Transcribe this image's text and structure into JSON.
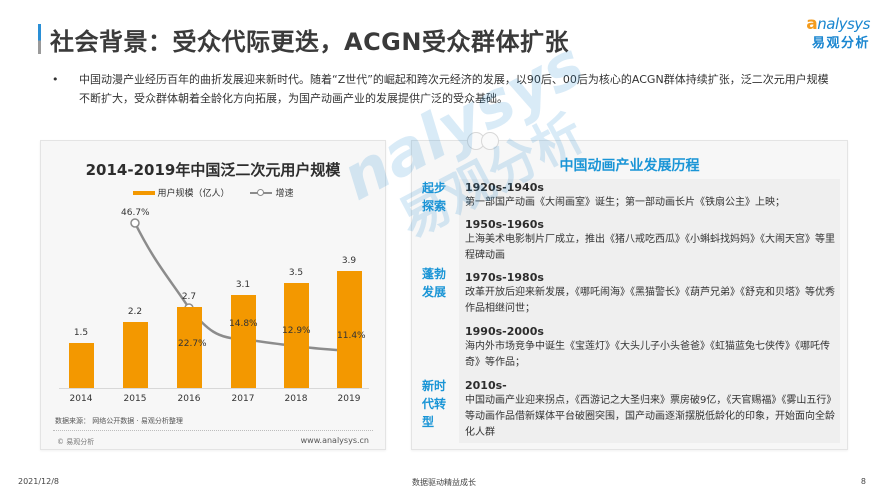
{
  "header": {
    "title": "社会背景：受众代际更迭，ACGN受众群体扩张",
    "logo_en_o": "a",
    "logo_en": "nalysys",
    "logo_cn": "易观分析",
    "accent_color": "#1a86d0"
  },
  "intro": {
    "bullet": "•",
    "text": "中国动漫产业经历百年的曲折发展迎来新时代。随着“Z世代”的崛起和跨次元经济的发展，以90后、00后为核心的ACGN群体持续扩张，泛二次元用户规模不断扩大，受众群体朝着全龄化方向拓展，为国产动画产业的发展提供广泛的受众基础。"
  },
  "chart_data": {
    "type": "bar",
    "title": "2014-2019年中国泛二次元用户规模",
    "categories": [
      "2014",
      "2015",
      "2016",
      "2017",
      "2018",
      "2019"
    ],
    "series": [
      {
        "name": "用户规模（亿人）",
        "type": "bar",
        "color": "#f39800",
        "values": [
          1.5,
          2.2,
          2.7,
          3.1,
          3.5,
          3.9
        ]
      },
      {
        "name": "增速",
        "type": "line",
        "color": "#8c8c8c",
        "values": [
          null,
          46.7,
          22.7,
          14.8,
          12.9,
          11.4
        ],
        "unit": "%"
      }
    ],
    "bar_labels": [
      "1.5",
      "2.2",
      "2.7",
      "3.1",
      "3.5",
      "3.9"
    ],
    "line_labels": [
      "",
      "46.7%",
      "22.7%",
      "14.8%",
      "12.9%",
      "11.4%"
    ],
    "xlabel": "",
    "ylabel": "",
    "grid": false,
    "legend_position": "top",
    "source": "数据来源：  网络公开数据 · 易观分析整理",
    "copyright": "© 易观分析",
    "website": "www.analysys.cn"
  },
  "timeline": {
    "title": "中国动画产业发展历程",
    "phases": [
      {
        "label_line1": "起步",
        "label_line2": "探索"
      },
      {
        "label_line1": "蓬勃",
        "label_line2": "发展"
      },
      {
        "label_line1": "新时",
        "label_line2": "代转",
        "label_line3": "型"
      }
    ],
    "entries": [
      {
        "era": "1920s-1940s",
        "desc": "第一部国产动画《大闹画室》诞生；第一部动画长片《铁扇公主》上映；"
      },
      {
        "era": "1950s-1960s",
        "desc": "上海美术电影制片厂成立，推出《猪八戒吃西瓜》《小蝌蚪找妈妈》《大闹天宫》等里程碑动画"
      },
      {
        "era": "1970s-1980s",
        "desc": "改革开放后迎来新发展，《哪吒闹海》《黑猫警长》《葫芦兄弟》《舒克和贝塔》等优秀作品相继问世；"
      },
      {
        "era": "1990s-2000s",
        "desc": "海内外市场竞争中诞生《宝莲灯》《大头儿子小头爸爸》《虹猫蓝兔七侠传》《哪吒传奇》等作品；"
      },
      {
        "era": "2010s-",
        "desc": "中国动画产业迎来拐点，《西游记之大圣归来》票房破9亿，《天官赐福》《雾山五行》等动画作品借新媒体平台破圈突围，国产动画逐渐摆脱低龄化的印象，开始面向全龄化人群"
      }
    ]
  },
  "watermark": {
    "en": "nalysys",
    "cn": "易观分析"
  },
  "footer": {
    "date": "2021/12/8",
    "slogan": "数据驱动精益成长",
    "page": "8"
  }
}
